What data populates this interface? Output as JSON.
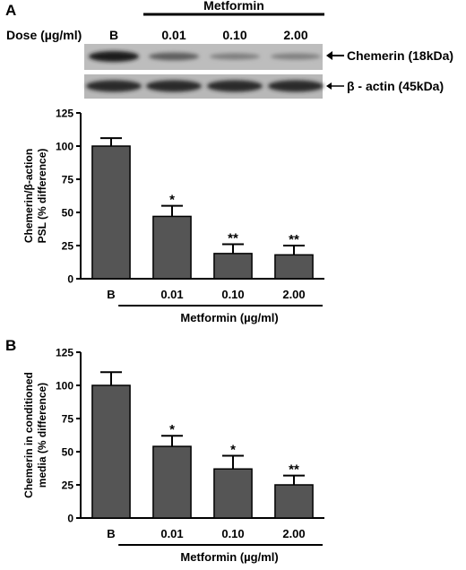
{
  "panel_a_label": "A",
  "panel_b_label": "B",
  "blot": {
    "group_label": "Metformin",
    "dose_label": "Dose (µg/ml)",
    "lane_labels": [
      "B",
      "0.01",
      "0.10",
      "2.00"
    ],
    "band_labels": [
      "Chemerin (18kDa)",
      "β - actin (45kDa)"
    ],
    "chemerin_intensity": [
      1.0,
      0.47,
      0.19,
      0.18
    ]
  },
  "chart_data": [
    {
      "type": "bar",
      "panel": "A",
      "categories": [
        "B",
        "0.01",
        "0.10",
        "2.00"
      ],
      "values": [
        100,
        47,
        19,
        18
      ],
      "errors": [
        6,
        8,
        7,
        7
      ],
      "significance": [
        "",
        "*",
        "**",
        "**"
      ],
      "ylabel_lines": [
        "Chemerin/β-action",
        "PSL (% difference)"
      ],
      "xlabel": "Metformin (µg/ml)",
      "ylim": [
        0,
        125
      ],
      "yticks": [
        0,
        25,
        50,
        75,
        100,
        125
      ],
      "bar_color": "#555555"
    },
    {
      "type": "bar",
      "panel": "B",
      "categories": [
        "B",
        "0.01",
        "0.10",
        "2.00"
      ],
      "values": [
        100,
        54,
        37,
        25
      ],
      "errors": [
        10,
        8,
        10,
        7
      ],
      "significance": [
        "",
        "*",
        "*",
        "**"
      ],
      "ylabel_lines": [
        "Chemerin in conditioned",
        "media (% difference)"
      ],
      "xlabel": "Metformin (µg/ml)",
      "ylim": [
        0,
        125
      ],
      "yticks": [
        0,
        25,
        50,
        75,
        100,
        125
      ],
      "bar_color": "#555555"
    }
  ]
}
